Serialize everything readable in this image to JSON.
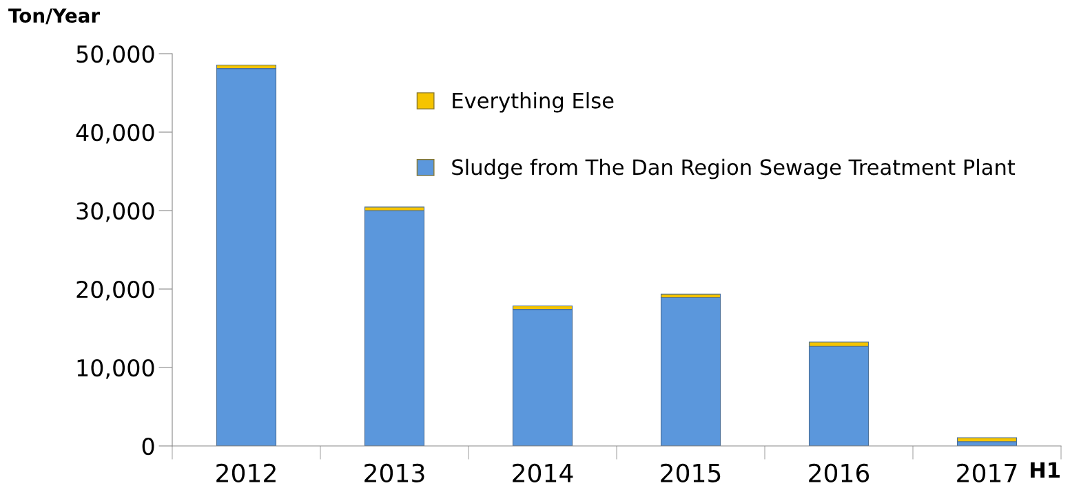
{
  "chart_data": {
    "type": "bar",
    "stacked": true,
    "ylabel": "Ton/Year",
    "categories": [
      "2012",
      "2013",
      "2014",
      "2015",
      "2016",
      "2017"
    ],
    "series": [
      {
        "name": "Sludge from The Dan Region Sewage Treatment Plant",
        "color": "#5b97dc",
        "values": [
          48100,
          30000,
          17400,
          18900,
          12700,
          550
        ]
      },
      {
        "name": "Everything Else",
        "color": "#f5c400",
        "values": [
          450,
          450,
          450,
          450,
          550,
          500
        ]
      }
    ],
    "ylim": [
      0,
      50000
    ],
    "yticks": [
      {
        "value": 0,
        "label": "0"
      },
      {
        "value": 10000,
        "label": "10,000"
      },
      {
        "value": 20000,
        "label": "20,000"
      },
      {
        "value": 30000,
        "label": "30,000"
      },
      {
        "value": 40000,
        "label": "40,000"
      },
      {
        "value": 50000,
        "label": "50,000"
      }
    ],
    "annotations": [
      "H1"
    ],
    "grid": false,
    "legend": "top right"
  }
}
